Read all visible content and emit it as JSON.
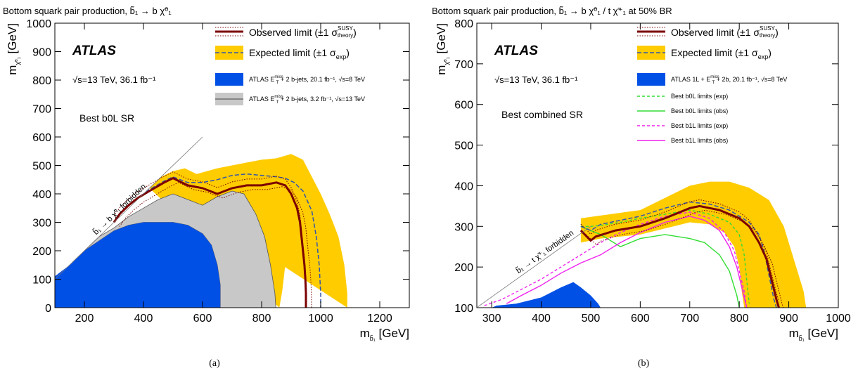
{
  "chart_data": [
    {
      "type": "line",
      "caption": "(a)",
      "title": "Bottom squark pair production, b̃₁ → b χ̃⁰₁",
      "experiment": "ATLAS",
      "energy_lumi": "√s=13 TeV, 36.1 fb⁻¹",
      "region_label": "Best b0L SR",
      "forbidden_label": "b̃₁ → b χ̃⁰₁ forbidden",
      "xlabel": "m",
      "xlabel_sub": "b̃₁",
      "xlabel_unit": "[GeV]",
      "ylabel": "m",
      "ylabel_sub": "χ̃⁰₁",
      "ylabel_unit": "[GeV]",
      "xlim": [
        100,
        1300
      ],
      "ylim": [
        0,
        1000
      ],
      "xticks": [
        200,
        400,
        600,
        800,
        1000,
        1200
      ],
      "yticks": [
        0,
        100,
        200,
        300,
        400,
        500,
        600,
        700,
        800,
        900,
        1000
      ],
      "legend": {
        "observed": "Observed limit (±1 σ",
        "observed_sup": "SUSY",
        "observed_sub": "theory",
        "expected": "Expected limit (±1 σ",
        "expected_sub": "exp",
        "prev1": "ATLAS E",
        "prev1_sup": "miss",
        "prev1_sub": "T",
        "prev1_rest": " + 2 b-jets, 20.1 fb⁻¹, √s=8 TeV",
        "prev2": "ATLAS E",
        "prev2_sup": "miss",
        "prev2_sub": "T",
        "prev2_rest": " + 2 b-jets, 3.2 fb⁻¹, √s=13 TeV"
      },
      "colors": {
        "observed": "#7b0000",
        "expected": "#3355aa",
        "band": "#ffcc00",
        "prev8": "#0050e6",
        "prev13": "#c8c8c8",
        "diag": "#999999"
      },
      "observed": [
        [
          300,
          300
        ],
        [
          320,
          330
        ],
        [
          350,
          360
        ],
        [
          380,
          385
        ],
        [
          420,
          410
        ],
        [
          470,
          440
        ],
        [
          500,
          455
        ],
        [
          550,
          430
        ],
        [
          600,
          420
        ],
        [
          650,
          400
        ],
        [
          700,
          420
        ],
        [
          750,
          430
        ],
        [
          800,
          430
        ],
        [
          850,
          440
        ],
        [
          880,
          430
        ],
        [
          900,
          400
        ],
        [
          920,
          350
        ],
        [
          930,
          300
        ],
        [
          935,
          250
        ],
        [
          940,
          200
        ],
        [
          945,
          150
        ],
        [
          948,
          100
        ],
        [
          950,
          50
        ],
        [
          950,
          0
        ]
      ],
      "expected": [
        [
          300,
          300
        ],
        [
          320,
          330
        ],
        [
          350,
          360
        ],
        [
          380,
          385
        ],
        [
          420,
          415
        ],
        [
          470,
          445
        ],
        [
          500,
          460
        ],
        [
          550,
          440
        ],
        [
          600,
          440
        ],
        [
          650,
          450
        ],
        [
          700,
          465
        ],
        [
          750,
          470
        ],
        [
          800,
          465
        ],
        [
          850,
          460
        ],
        [
          880,
          455
        ],
        [
          910,
          440
        ],
        [
          940,
          410
        ],
        [
          970,
          340
        ],
        [
          985,
          250
        ],
        [
          995,
          150
        ],
        [
          1000,
          50
        ],
        [
          1000,
          0
        ]
      ],
      "band_outer": [
        [
          420,
          420
        ],
        [
          460,
          460
        ],
        [
          500,
          480
        ],
        [
          540,
          490
        ],
        [
          580,
          470
        ],
        [
          650,
          490
        ],
        [
          700,
          500
        ],
        [
          750,
          510
        ],
        [
          800,
          520
        ],
        [
          850,
          525
        ],
        [
          900,
          540
        ],
        [
          940,
          520
        ],
        [
          970,
          460
        ],
        [
          1000,
          400
        ],
        [
          1030,
          330
        ],
        [
          1060,
          250
        ],
        [
          1080,
          150
        ],
        [
          1090,
          50
        ],
        [
          1090,
          0
        ]
      ],
      "band_inner": [
        [
          860,
          0
        ],
        [
          870,
          60
        ],
        [
          880,
          150
        ],
        [
          880,
          250
        ],
        [
          875,
          320
        ],
        [
          860,
          360
        ],
        [
          820,
          390
        ],
        [
          770,
          395
        ],
        [
          700,
          395
        ],
        [
          640,
          380
        ],
        [
          580,
          390
        ],
        [
          530,
          410
        ],
        [
          500,
          430
        ],
        [
          470,
          420
        ]
      ],
      "prev8_contour": [
        [
          100,
          0
        ],
        [
          100,
          110
        ],
        [
          150,
          150
        ],
        [
          200,
          200
        ],
        [
          250,
          235
        ],
        [
          300,
          270
        ],
        [
          350,
          290
        ],
        [
          400,
          300
        ],
        [
          450,
          300
        ],
        [
          500,
          300
        ],
        [
          550,
          290
        ],
        [
          600,
          260
        ],
        [
          630,
          220
        ],
        [
          650,
          150
        ],
        [
          660,
          80
        ],
        [
          660,
          0
        ]
      ],
      "prev13_contour": [
        [
          160,
          160
        ],
        [
          200,
          200
        ],
        [
          250,
          250
        ],
        [
          300,
          280
        ],
        [
          350,
          320
        ],
        [
          400,
          350
        ],
        [
          450,
          380
        ],
        [
          500,
          400
        ],
        [
          550,
          380
        ],
        [
          600,
          360
        ],
        [
          650,
          390
        ],
        [
          700,
          410
        ],
        [
          740,
          400
        ],
        [
          780,
          330
        ],
        [
          810,
          250
        ],
        [
          830,
          150
        ],
        [
          845,
          50
        ],
        [
          848,
          0
        ],
        [
          660,
          0
        ],
        [
          660,
          80
        ],
        [
          650,
          150
        ],
        [
          630,
          220
        ],
        [
          600,
          260
        ],
        [
          550,
          290
        ],
        [
          500,
          300
        ],
        [
          450,
          300
        ],
        [
          400,
          300
        ],
        [
          350,
          290
        ],
        [
          300,
          270
        ],
        [
          250,
          235
        ],
        [
          200,
          200
        ]
      ],
      "diagonal": [
        [
          100,
          100
        ],
        [
          600,
          600
        ]
      ]
    },
    {
      "type": "line",
      "caption": "(b)",
      "title": "Bottom squark pair production, b̃₁ → b χ̃⁰₁ / t χ̃⁺₁ at 50% BR",
      "experiment": "ATLAS",
      "energy_lumi": "√s=13 TeV, 36.1 fb⁻¹",
      "region_label": "Best combined SR",
      "forbidden_label": "b̃₁ → t χ̃⁺₁ forbidden",
      "xlabel": "m",
      "xlabel_sub": "b̃₁",
      "xlabel_unit": "[GeV]",
      "ylabel": "m",
      "ylabel_sub": "χ̃⁰₁",
      "ylabel_unit": "[GeV]",
      "xlim": [
        270,
        1000
      ],
      "ylim": [
        100,
        800
      ],
      "xticks": [
        300,
        400,
        500,
        600,
        700,
        800,
        900,
        1000
      ],
      "yticks": [
        100,
        200,
        300,
        400,
        500,
        600,
        700,
        800
      ],
      "legend": {
        "observed": "Observed limit (±1 σ",
        "observed_sup": "SUSY",
        "observed_sub": "theory",
        "expected": "Expected limit (±1 σ",
        "expected_sub": "exp",
        "prev": "ATLAS 1L + E",
        "prev_sup": "miss",
        "prev_sub": "T",
        "prev_rest": " + 2b, 20.1 fb⁻¹, √s=8 TeV",
        "b0l_exp": "Best b0L limits (exp)",
        "b0l_obs": "Best b0L limits (obs)",
        "b1l_exp": "Best b1L limits (exp)",
        "b1l_obs": "Best b1L limits (obs)"
      },
      "colors": {
        "observed": "#7b0000",
        "expected": "#3355aa",
        "band": "#ffcc00",
        "prev8": "#0050e6",
        "b0l": "#33dd33",
        "b1l": "#ee22ee",
        "diag": "#999999"
      },
      "observed": [
        [
          480,
          290
        ],
        [
          500,
          265
        ],
        [
          510,
          275
        ],
        [
          550,
          290
        ],
        [
          600,
          300
        ],
        [
          650,
          320
        ],
        [
          700,
          345
        ],
        [
          720,
          350
        ],
        [
          760,
          340
        ],
        [
          800,
          320
        ],
        [
          820,
          300
        ],
        [
          840,
          260
        ],
        [
          855,
          220
        ],
        [
          865,
          170
        ],
        [
          875,
          120
        ],
        [
          880,
          100
        ]
      ],
      "expected": [
        [
          480,
          300
        ],
        [
          500,
          290
        ],
        [
          520,
          305
        ],
        [
          560,
          315
        ],
        [
          600,
          325
        ],
        [
          650,
          345
        ],
        [
          700,
          360
        ],
        [
          740,
          355
        ],
        [
          780,
          340
        ],
        [
          820,
          310
        ],
        [
          840,
          280
        ],
        [
          850,
          240
        ],
        [
          860,
          180
        ],
        [
          870,
          120
        ],
        [
          875,
          100
        ]
      ],
      "band_outer": [
        [
          480,
          320
        ],
        [
          600,
          340
        ],
        [
          650,
          370
        ],
        [
          700,
          400
        ],
        [
          740,
          410
        ],
        [
          780,
          410
        ],
        [
          820,
          395
        ],
        [
          860,
          365
        ],
        [
          890,
          300
        ],
        [
          910,
          220
        ],
        [
          930,
          140
        ],
        [
          935,
          100
        ]
      ],
      "band_inner": [
        [
          480,
          260
        ],
        [
          520,
          270
        ],
        [
          560,
          275
        ],
        [
          600,
          280
        ],
        [
          650,
          295
        ],
        [
          700,
          310
        ],
        [
          740,
          305
        ],
        [
          770,
          285
        ],
        [
          790,
          250
        ],
        [
          800,
          200
        ],
        [
          805,
          140
        ],
        [
          810,
          100
        ]
      ],
      "b0l_exp": [
        [
          480,
          300
        ],
        [
          500,
          300
        ],
        [
          520,
          302
        ],
        [
          560,
          310
        ],
        [
          600,
          320
        ],
        [
          650,
          330
        ],
        [
          700,
          340
        ],
        [
          740,
          330
        ],
        [
          780,
          310
        ],
        [
          800,
          280
        ],
        [
          810,
          230
        ],
        [
          815,
          170
        ],
        [
          820,
          110
        ]
      ],
      "b0l_obs": [
        [
          480,
          300
        ],
        [
          500,
          290
        ],
        [
          520,
          280
        ],
        [
          560,
          250
        ],
        [
          600,
          270
        ],
        [
          650,
          280
        ],
        [
          700,
          270
        ],
        [
          730,
          260
        ],
        [
          760,
          230
        ],
        [
          780,
          190
        ],
        [
          795,
          130
        ],
        [
          800,
          100
        ]
      ],
      "b1l_exp": [
        [
          285,
          105
        ],
        [
          320,
          120
        ],
        [
          360,
          145
        ],
        [
          400,
          170
        ],
        [
          440,
          200
        ],
        [
          480,
          230
        ],
        [
          520,
          260
        ],
        [
          560,
          285
        ],
        [
          600,
          305
        ],
        [
          650,
          325
        ],
        [
          700,
          335
        ],
        [
          740,
          320
        ],
        [
          770,
          285
        ],
        [
          790,
          240
        ],
        [
          800,
          190
        ],
        [
          810,
          140
        ],
        [
          815,
          100
        ]
      ],
      "b1l_obs": [
        [
          330,
          110
        ],
        [
          360,
          130
        ],
        [
          400,
          155
        ],
        [
          440,
          185
        ],
        [
          480,
          210
        ],
        [
          520,
          230
        ],
        [
          560,
          260
        ],
        [
          600,
          285
        ],
        [
          650,
          310
        ],
        [
          700,
          325
        ],
        [
          730,
          315
        ],
        [
          760,
          290
        ],
        [
          780,
          250
        ],
        [
          795,
          200
        ],
        [
          805,
          150
        ],
        [
          815,
          100
        ]
      ],
      "prev8_contour": [
        [
          300,
          100
        ],
        [
          310,
          105
        ],
        [
          350,
          110
        ],
        [
          400,
          125
        ],
        [
          440,
          150
        ],
        [
          465,
          163
        ],
        [
          480,
          150
        ],
        [
          500,
          130
        ],
        [
          515,
          110
        ],
        [
          520,
          100
        ]
      ],
      "diagonal": [
        [
          272,
          102
        ],
        [
          500,
          300
        ]
      ]
    }
  ]
}
